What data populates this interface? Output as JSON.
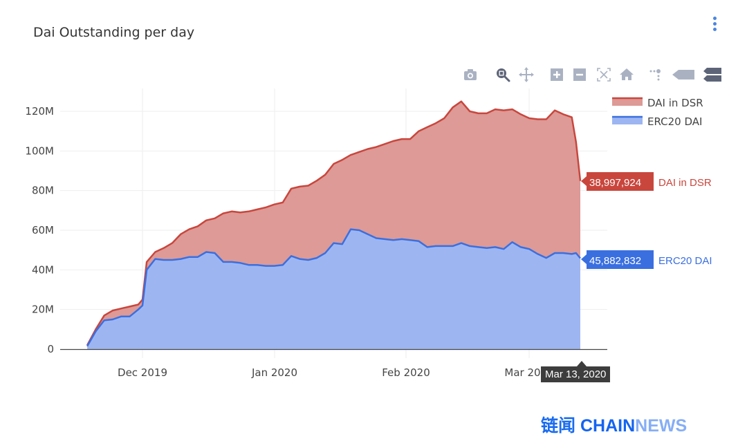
{
  "header": {
    "title": "Dai Outstanding per day",
    "menu_icon": "kebab-menu-icon"
  },
  "modebar": {
    "buttons": [
      {
        "name": "download-plot-icon",
        "label": "Download plot as a png"
      },
      {
        "name": "zoom-icon",
        "label": "Zoom",
        "active": true
      },
      {
        "name": "pan-icon",
        "label": "Pan"
      },
      {
        "name": "zoom-in-icon",
        "label": "Zoom in"
      },
      {
        "name": "zoom-out-icon",
        "label": "Zoom out"
      },
      {
        "name": "autoscale-icon",
        "label": "Autoscale"
      },
      {
        "name": "reset-axes-icon",
        "label": "Reset axes"
      },
      {
        "name": "spike-lines-icon",
        "label": "Toggle Spike Lines"
      },
      {
        "name": "hover-closest-icon",
        "label": "Show closest data on hover"
      },
      {
        "name": "hover-compare-icon",
        "label": "Compare data on hover"
      }
    ]
  },
  "legend": {
    "items": [
      {
        "label": "DAI in DSR",
        "color": "#c9463d",
        "fill": "#dd9a96"
      },
      {
        "label": "ERC20 DAI",
        "color": "#3a6fe0",
        "fill": "#9db6f2"
      }
    ]
  },
  "hover": {
    "x_label": "Mar 13, 2020",
    "dsr": {
      "value": "38,997,924",
      "name": "DAI in DSR",
      "color": "#c9463d"
    },
    "erc20": {
      "value": "45,882,832",
      "name": "ERC20 DAI",
      "color": "#3a6fe0"
    }
  },
  "watermark": {
    "cn": "链闻",
    "chain": "CHAIN",
    "news": "NEWS"
  },
  "chart_data": {
    "type": "area",
    "stacked": true,
    "title": "Dai Outstanding per day",
    "xlabel": "",
    "ylabel": "",
    "x_ticks": [
      "Dec 2019",
      "Jan 2020",
      "Feb 2020",
      "Mar 2020"
    ],
    "y_ticks": [
      "0",
      "20M",
      "40M",
      "60M",
      "80M",
      "100M",
      "120M"
    ],
    "ylim": [
      0,
      130000000
    ],
    "grid": true,
    "legend_position": "top-right",
    "x": [
      "2019-11-18",
      "2019-11-20",
      "2019-11-22",
      "2019-11-24",
      "2019-11-26",
      "2019-11-28",
      "2019-11-30",
      "2019-12-01",
      "2019-12-02",
      "2019-12-04",
      "2019-12-06",
      "2019-12-08",
      "2019-12-10",
      "2019-12-12",
      "2019-12-14",
      "2019-12-16",
      "2019-12-18",
      "2019-12-20",
      "2019-12-22",
      "2019-12-24",
      "2019-12-26",
      "2019-12-28",
      "2019-12-30",
      "2020-01-01",
      "2020-01-03",
      "2020-01-05",
      "2020-01-07",
      "2020-01-09",
      "2020-01-11",
      "2020-01-13",
      "2020-01-15",
      "2020-01-17",
      "2020-01-19",
      "2020-01-21",
      "2020-01-23",
      "2020-01-25",
      "2020-01-27",
      "2020-01-29",
      "2020-01-31",
      "2020-02-02",
      "2020-02-04",
      "2020-02-06",
      "2020-02-08",
      "2020-02-10",
      "2020-02-12",
      "2020-02-14",
      "2020-02-16",
      "2020-02-18",
      "2020-02-20",
      "2020-02-22",
      "2020-02-24",
      "2020-02-26",
      "2020-02-28",
      "2020-03-01",
      "2020-03-03",
      "2020-03-05",
      "2020-03-07",
      "2020-03-09",
      "2020-03-11",
      "2020-03-12",
      "2020-03-13"
    ],
    "series": [
      {
        "name": "ERC20 DAI",
        "values": [
          1500000,
          9000000,
          14500000,
          15000000,
          16500000,
          16500000,
          20000000,
          22000000,
          40000000,
          45500000,
          45000000,
          45000000,
          45500000,
          46500000,
          46500000,
          49000000,
          48500000,
          44000000,
          44000000,
          43500000,
          42500000,
          42500000,
          42000000,
          42000000,
          42500000,
          47000000,
          45500000,
          45000000,
          46000000,
          48500000,
          53500000,
          53000000,
          60500000,
          60000000,
          58000000,
          56000000,
          55500000,
          55000000,
          55500000,
          55000000,
          54500000,
          51500000,
          52000000,
          52000000,
          52000000,
          53500000,
          52000000,
          51500000,
          51000000,
          51500000,
          50500000,
          54000000,
          51500000,
          50500000,
          48000000,
          46000000,
          48500000,
          48500000,
          48000000,
          48500000,
          45882832
        ]
      },
      {
        "name": "DAI in DSR",
        "values": [
          500000,
          1000000,
          2500000,
          4500000,
          4000000,
          5000000,
          2500000,
          3000000,
          4000000,
          3500000,
          6000000,
          8500000,
          12500000,
          14000000,
          15500000,
          16000000,
          17500000,
          24500000,
          25500000,
          25500000,
          27000000,
          28000000,
          29500000,
          31000000,
          31500000,
          34000000,
          36500000,
          37500000,
          39000000,
          39500000,
          40000000,
          42500000,
          37500000,
          39500000,
          43000000,
          46000000,
          48000000,
          50000000,
          50500000,
          51000000,
          55500000,
          60500000,
          62000000,
          64500000,
          70000000,
          71500000,
          68000000,
          67500000,
          68000000,
          69500000,
          70000000,
          67000000,
          67000000,
          66000000,
          68000000,
          70000000,
          72000000,
          70000000,
          69000000,
          56000000,
          38997924
        ]
      }
    ]
  }
}
